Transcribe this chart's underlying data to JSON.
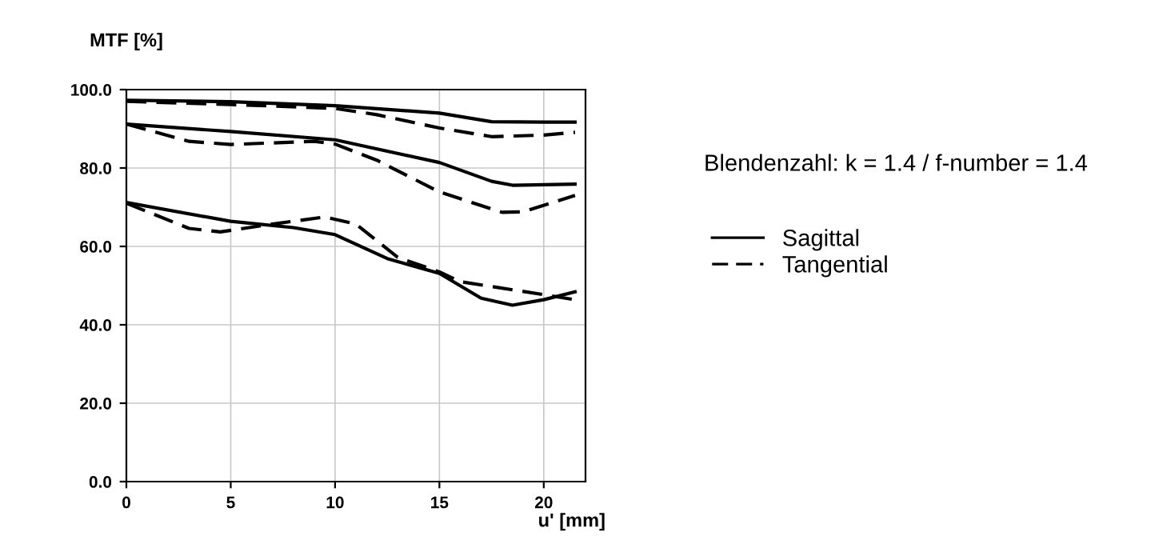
{
  "chart_data": {
    "type": "line",
    "ylabel": "MTF [%]",
    "xlabel": "u' [mm]",
    "xlim": [
      0,
      22
    ],
    "xticks": [
      0,
      5,
      10,
      15,
      20
    ],
    "ylim": [
      0,
      100
    ],
    "yticks": [
      {
        "value": 0,
        "label": "0.0"
      },
      {
        "value": 20,
        "label": "20.0"
      },
      {
        "value": 40,
        "label": "40.0"
      },
      {
        "value": 60,
        "label": "60.0"
      },
      {
        "value": 80,
        "label": "80.0"
      },
      {
        "value": 100,
        "label": "100.0"
      }
    ],
    "grid": true,
    "legend": "right",
    "marker": "none",
    "annotations": [
      "Blendenzahl: k = 1.4 / f-number = 1.4"
    ],
    "series": [
      {
        "name": "Sagittal",
        "color": "#000000",
        "line_style": "solid",
        "x": [
          0,
          5,
          10,
          15,
          17.5,
          20,
          21.5
        ],
        "values": [
          97.3,
          96.9,
          95.9,
          94,
          91.8,
          91.7,
          91.7
        ]
      },
      {
        "name": "Tangential",
        "color": "#000000",
        "line_style": "dashed",
        "x": [
          0,
          5,
          10,
          12,
          15,
          17.5,
          20,
          21.5
        ],
        "values": [
          97,
          96.2,
          95.2,
          93.6,
          90.2,
          88,
          88.4,
          89.1
        ]
      },
      {
        "color": "#000000",
        "line_style": "solid",
        "x": [
          0,
          5,
          10,
          15,
          17.5,
          18.5,
          21.5
        ],
        "values": [
          91.2,
          89.3,
          87.2,
          81.4,
          76.6,
          75.6,
          75.9
        ]
      },
      {
        "color": "#000000",
        "line_style": "dashed",
        "x": [
          0,
          3,
          5,
          9,
          10,
          12,
          15,
          18,
          19,
          21.5
        ],
        "values": [
          91.2,
          86.8,
          86,
          86.8,
          86.1,
          82,
          73.9,
          68.7,
          68.8,
          73
        ]
      },
      {
        "color": "#000000",
        "line_style": "solid",
        "x": [
          0,
          5,
          8,
          10,
          12.5,
          15,
          17,
          18.5,
          20,
          21.5
        ],
        "values": [
          71.2,
          66.4,
          64.8,
          63,
          56.9,
          53.1,
          46.8,
          45,
          46.4,
          48.4
        ]
      },
      {
        "color": "#000000",
        "line_style": "dashed",
        "x": [
          0,
          3,
          4.5,
          7,
          9.5,
          11,
          13,
          15,
          16,
          20,
          21.5
        ],
        "values": [
          71,
          64.6,
          63.7,
          65.7,
          67.5,
          65.7,
          57.2,
          53.5,
          51,
          47.7,
          46.4
        ]
      }
    ]
  }
}
